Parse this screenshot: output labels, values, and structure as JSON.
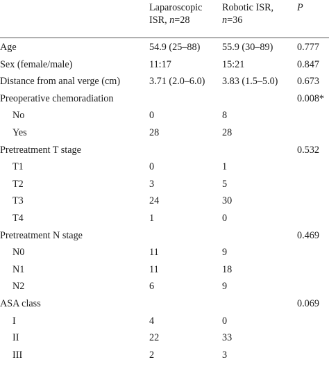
{
  "header": {
    "lap_line1": "Laparoscopic",
    "lap_line2_pre": "ISR, ",
    "lap_n_var": "n",
    "lap_n_val": "=28",
    "rob_line1": "Robotic ISR,",
    "rob_n_var": "n",
    "rob_n_val": "=36",
    "p_label": "P"
  },
  "rows": [
    {
      "label": "Age",
      "lap": "54.9 (25–88)",
      "rob": "55.9 (30–89)",
      "p": "0.777"
    },
    {
      "label": "Sex (female/male)",
      "lap": "11:17",
      "rob": "15:21",
      "p": "0.847"
    },
    {
      "label": "Distance from anal verge (cm)",
      "lap": "3.71 (2.0–6.0)",
      "rob": "3.83 (1.5–5.0)",
      "p": "0.673"
    },
    {
      "label": "Preoperative chemoradiation",
      "lap": "",
      "rob": "",
      "p": "0.008*"
    },
    {
      "label": "No",
      "lap": "0",
      "rob": "8",
      "p": ""
    },
    {
      "label": "Yes",
      "lap": "28",
      "rob": "28",
      "p": ""
    },
    {
      "label": "Pretreatment T stage",
      "lap": "",
      "rob": "",
      "p": "0.532"
    },
    {
      "label": "T1",
      "lap": "0",
      "rob": "1",
      "p": ""
    },
    {
      "label": "T2",
      "lap": "3",
      "rob": "5",
      "p": ""
    },
    {
      "label": "T3",
      "lap": "24",
      "rob": "30",
      "p": ""
    },
    {
      "label": "T4",
      "lap": "1",
      "rob": "0",
      "p": ""
    },
    {
      "label": "Pretreatment N stage",
      "lap": "",
      "rob": "",
      "p": "0.469"
    },
    {
      "label": "N0",
      "lap": "11",
      "rob": "9",
      "p": ""
    },
    {
      "label": "N1",
      "lap": "11",
      "rob": "18",
      "p": ""
    },
    {
      "label": "N2",
      "lap": "6",
      "rob": "9",
      "p": ""
    },
    {
      "label": "ASA class",
      "lap": "",
      "rob": "",
      "p": "0.069"
    },
    {
      "label": "I",
      "lap": "4",
      "rob": "0",
      "p": ""
    },
    {
      "label": "II",
      "lap": "22",
      "rob": "33",
      "p": ""
    },
    {
      "label": "III",
      "lap": "2",
      "rob": "3",
      "p": ""
    }
  ]
}
